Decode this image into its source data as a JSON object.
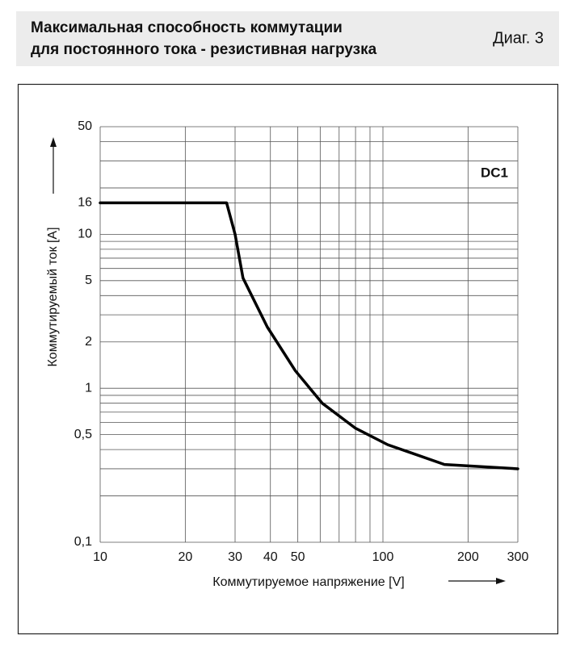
{
  "header": {
    "title_line1": "Максимальная способность коммутации",
    "title_line2": "для постоянного тока - резистивная нагрузка",
    "figure_label": "Диаг. 3"
  },
  "chart_data": {
    "type": "line",
    "log_x": true,
    "log_y": true,
    "grid": true,
    "x_label": "Коммутируемое напряжение [V]",
    "y_label": "Коммутируемый ток [A]",
    "annotation": "DC1",
    "x": [
      10,
      28,
      30,
      32,
      39,
      49,
      61,
      80,
      104,
      165,
      300
    ],
    "values": [
      16,
      16,
      10,
      5.2,
      2.5,
      1.3,
      0.8,
      0.55,
      0.43,
      0.32,
      0.3
    ],
    "color": "#000000",
    "xlim": [
      10,
      300
    ],
    "ylim": [
      0.1,
      50
    ],
    "xticks": [
      10,
      20,
      30,
      40,
      50,
      100,
      200,
      300
    ],
    "yticks": [
      {
        "value": 0.1,
        "label": "0,1"
      },
      {
        "value": 0.5,
        "label": "0,5"
      },
      1,
      2,
      5,
      10,
      16,
      50
    ],
    "xgrid": [
      60,
      70,
      80,
      90
    ],
    "ygrid": [
      0.2,
      0.3,
      0.4,
      0.6,
      0.7,
      0.8,
      0.9,
      3,
      4,
      6,
      7,
      8,
      9,
      20,
      30,
      40
    ]
  }
}
